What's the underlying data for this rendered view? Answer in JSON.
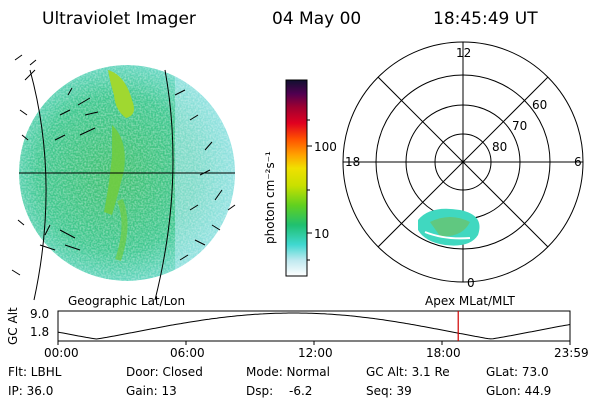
{
  "header": {
    "instrument": "Ultraviolet Imager",
    "date": "04 May 00",
    "time": "18:45:49 UT"
  },
  "colorbar": {
    "unit_label": "photon cm⁻²s⁻¹",
    "tick_100": "100",
    "tick_10": "10",
    "colors": [
      "#ffffff",
      "#bfe9f0",
      "#40d8d0",
      "#20c070",
      "#60d020",
      "#c8e000",
      "#f0e000",
      "#ffa000",
      "#ff5000",
      "#e00020",
      "#a00030",
      "#500050",
      "#101030"
    ]
  },
  "polar": {
    "mlt_12": "12",
    "mlt_18": "18",
    "mlt_6": "6",
    "mlt_0": "0",
    "lat_60": "60",
    "lat_70": "70",
    "lat_80": "80"
  },
  "labels": {
    "geo": "Geographic Lat/Lon",
    "apex": "Apex MLat/MLT"
  },
  "altitude_plot": {
    "ylabel": "GC Alt",
    "ytick_top": "9.0",
    "ytick_bottom": "1.8",
    "xticks": [
      "00:00",
      "06:00",
      "12:00",
      "18:00",
      "23:59"
    ],
    "current_time_marker_hours": 18.76,
    "marker_color": "#d00000"
  },
  "info": {
    "flt": "Flt: LBHL",
    "ip": "IP: 36.0",
    "door": "Door: Closed",
    "gain": "Gain: 13",
    "mode": "Mode: Normal",
    "dsp_label": "Dsp:",
    "dsp_value": "-6.2",
    "gcalt": "GC Alt: 3.1 Re",
    "seq": "Seq: 39",
    "glat": "GLat: 73.0",
    "glon": "GLon:  44.9"
  }
}
